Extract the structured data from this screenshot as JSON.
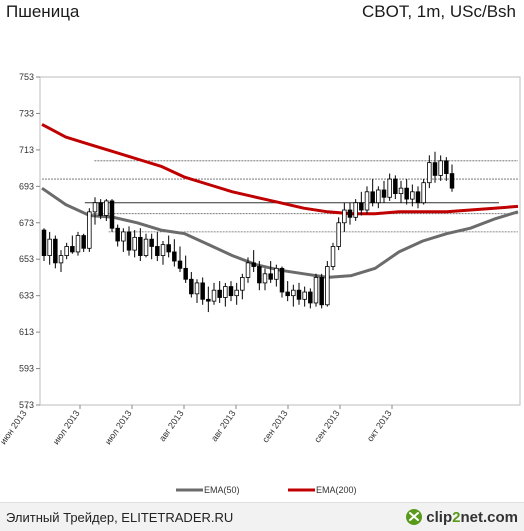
{
  "header": {
    "title": "Пшеница",
    "subtitle": "CBOT, 1m, USc/Bsh"
  },
  "footer": {
    "credit": "Элитный Трейдер, ELITETRADER.RU",
    "logo_text": "clip2net.com",
    "logo_highlight": "2"
  },
  "chart_data": {
    "type": "candlestick",
    "ylim": [
      573,
      753
    ],
    "yticks": [
      "753",
      "733",
      "713",
      "693",
      "673",
      "653",
      "633",
      "613",
      "593",
      "573"
    ],
    "xticks": [
      "июн 2013",
      "июл 2013",
      "июл 2013",
      "авг 2013",
      "авг 2013",
      "сен 2013",
      "сен 2013",
      "окт 2013"
    ],
    "grid": false,
    "legend_position": "bottom",
    "legend": [
      {
        "name": "EMA(50)",
        "color": "#6b6b6b"
      },
      {
        "name": "EMA(200)",
        "color": "#c00000"
      }
    ],
    "ema50": {
      "name": "EMA(50)",
      "color": "#6b6b6b",
      "x": [
        0,
        5,
        10,
        15,
        20,
        25,
        30,
        35,
        40,
        45,
        50,
        55,
        60,
        65,
        70,
        75,
        80,
        85,
        90,
        95,
        100
      ],
      "y": [
        692,
        683,
        677,
        676,
        673,
        669,
        667,
        661,
        655,
        650,
        647,
        645,
        643,
        644,
        648,
        657,
        663,
        667,
        670,
        675,
        679
      ]
    },
    "ema200": {
      "name": "EMA(200)",
      "color": "#c00000",
      "x": [
        0,
        5,
        10,
        15,
        20,
        25,
        30,
        35,
        40,
        45,
        50,
        55,
        60,
        65,
        70,
        75,
        80,
        85,
        90,
        95,
        100
      ],
      "y": [
        727,
        720,
        716,
        712,
        708,
        704,
        698,
        694,
        690,
        687,
        684,
        681,
        679,
        678,
        678,
        679,
        679,
        679,
        680,
        681,
        682
      ]
    },
    "levels": [
      {
        "y": 707,
        "x_from": 11,
        "x_to": 100
      },
      {
        "y": 697,
        "x_from": 0,
        "x_to": 100
      },
      {
        "y": 684,
        "x_from": 9,
        "x_to": 96
      },
      {
        "y": 678,
        "x_from": 10,
        "x_to": 100
      },
      {
        "y": 668,
        "x_from": 14,
        "x_to": 100
      }
    ],
    "candles": [
      {
        "o": 669,
        "h": 670,
        "l": 652,
        "c": 655
      },
      {
        "o": 655,
        "h": 668,
        "l": 650,
        "c": 664
      },
      {
        "o": 664,
        "h": 666,
        "l": 648,
        "c": 651
      },
      {
        "o": 651,
        "h": 658,
        "l": 646,
        "c": 655
      },
      {
        "o": 655,
        "h": 662,
        "l": 653,
        "c": 660
      },
      {
        "o": 660,
        "h": 666,
        "l": 656,
        "c": 657
      },
      {
        "o": 657,
        "h": 668,
        "l": 655,
        "c": 666
      },
      {
        "o": 666,
        "h": 667,
        "l": 657,
        "c": 659
      },
      {
        "o": 659,
        "h": 681,
        "l": 657,
        "c": 679
      },
      {
        "o": 679,
        "h": 687,
        "l": 672,
        "c": 684
      },
      {
        "o": 684,
        "h": 686,
        "l": 675,
        "c": 677
      },
      {
        "o": 677,
        "h": 686,
        "l": 674,
        "c": 685
      },
      {
        "o": 685,
        "h": 686,
        "l": 668,
        "c": 670
      },
      {
        "o": 670,
        "h": 672,
        "l": 660,
        "c": 663
      },
      {
        "o": 663,
        "h": 670,
        "l": 657,
        "c": 668
      },
      {
        "o": 668,
        "h": 671,
        "l": 655,
        "c": 658
      },
      {
        "o": 658,
        "h": 669,
        "l": 654,
        "c": 665
      },
      {
        "o": 665,
        "h": 670,
        "l": 652,
        "c": 655
      },
      {
        "o": 655,
        "h": 667,
        "l": 654,
        "c": 664
      },
      {
        "o": 664,
        "h": 667,
        "l": 653,
        "c": 660
      },
      {
        "o": 660,
        "h": 668,
        "l": 652,
        "c": 655
      },
      {
        "o": 655,
        "h": 663,
        "l": 650,
        "c": 661
      },
      {
        "o": 661,
        "h": 666,
        "l": 654,
        "c": 657
      },
      {
        "o": 657,
        "h": 664,
        "l": 649,
        "c": 652
      },
      {
        "o": 652,
        "h": 660,
        "l": 646,
        "c": 648
      },
      {
        "o": 648,
        "h": 655,
        "l": 640,
        "c": 642
      },
      {
        "o": 642,
        "h": 646,
        "l": 632,
        "c": 634
      },
      {
        "o": 634,
        "h": 642,
        "l": 629,
        "c": 640
      },
      {
        "o": 640,
        "h": 643,
        "l": 628,
        "c": 631
      },
      {
        "o": 631,
        "h": 638,
        "l": 624,
        "c": 630
      },
      {
        "o": 630,
        "h": 640,
        "l": 628,
        "c": 636
      },
      {
        "o": 636,
        "h": 641,
        "l": 629,
        "c": 632
      },
      {
        "o": 632,
        "h": 640,
        "l": 627,
        "c": 638
      },
      {
        "o": 638,
        "h": 641,
        "l": 630,
        "c": 633
      },
      {
        "o": 633,
        "h": 640,
        "l": 628,
        "c": 636
      },
      {
        "o": 636,
        "h": 645,
        "l": 631,
        "c": 643
      },
      {
        "o": 643,
        "h": 654,
        "l": 640,
        "c": 651
      },
      {
        "o": 651,
        "h": 658,
        "l": 646,
        "c": 649
      },
      {
        "o": 649,
        "h": 652,
        "l": 636,
        "c": 640
      },
      {
        "o": 640,
        "h": 648,
        "l": 636,
        "c": 645
      },
      {
        "o": 645,
        "h": 652,
        "l": 640,
        "c": 642
      },
      {
        "o": 642,
        "h": 650,
        "l": 638,
        "c": 648
      },
      {
        "o": 648,
        "h": 649,
        "l": 632,
        "c": 635
      },
      {
        "o": 635,
        "h": 641,
        "l": 630,
        "c": 633
      },
      {
        "o": 633,
        "h": 639,
        "l": 627,
        "c": 636
      },
      {
        "o": 636,
        "h": 640,
        "l": 628,
        "c": 631
      },
      {
        "o": 631,
        "h": 638,
        "l": 627,
        "c": 635
      },
      {
        "o": 635,
        "h": 637,
        "l": 626,
        "c": 629
      },
      {
        "o": 629,
        "h": 645,
        "l": 627,
        "c": 643
      },
      {
        "o": 643,
        "h": 645,
        "l": 626,
        "c": 628
      },
      {
        "o": 628,
        "h": 652,
        "l": 627,
        "c": 649
      },
      {
        "o": 649,
        "h": 662,
        "l": 647,
        "c": 660
      },
      {
        "o": 660,
        "h": 676,
        "l": 658,
        "c": 673
      },
      {
        "o": 673,
        "h": 684,
        "l": 668,
        "c": 680
      },
      {
        "o": 680,
        "h": 684,
        "l": 672,
        "c": 676
      },
      {
        "o": 676,
        "h": 686,
        "l": 674,
        "c": 684
      },
      {
        "o": 684,
        "h": 690,
        "l": 677,
        "c": 680
      },
      {
        "o": 680,
        "h": 693,
        "l": 678,
        "c": 690
      },
      {
        "o": 690,
        "h": 697,
        "l": 682,
        "c": 684
      },
      {
        "o": 684,
        "h": 693,
        "l": 681,
        "c": 691
      },
      {
        "o": 691,
        "h": 696,
        "l": 684,
        "c": 687
      },
      {
        "o": 687,
        "h": 700,
        "l": 685,
        "c": 697
      },
      {
        "o": 697,
        "h": 699,
        "l": 686,
        "c": 689
      },
      {
        "o": 689,
        "h": 696,
        "l": 684,
        "c": 692
      },
      {
        "o": 692,
        "h": 697,
        "l": 683,
        "c": 686
      },
      {
        "o": 686,
        "h": 694,
        "l": 682,
        "c": 690
      },
      {
        "o": 690,
        "h": 693,
        "l": 681,
        "c": 684
      },
      {
        "o": 684,
        "h": 697,
        "l": 683,
        "c": 695
      },
      {
        "o": 695,
        "h": 710,
        "l": 692,
        "c": 706
      },
      {
        "o": 706,
        "h": 712,
        "l": 695,
        "c": 699
      },
      {
        "o": 699,
        "h": 710,
        "l": 696,
        "c": 707
      },
      {
        "o": 707,
        "h": 709,
        "l": 696,
        "c": 700
      },
      {
        "o": 700,
        "h": 705,
        "l": 690,
        "c": 692
      }
    ]
  }
}
